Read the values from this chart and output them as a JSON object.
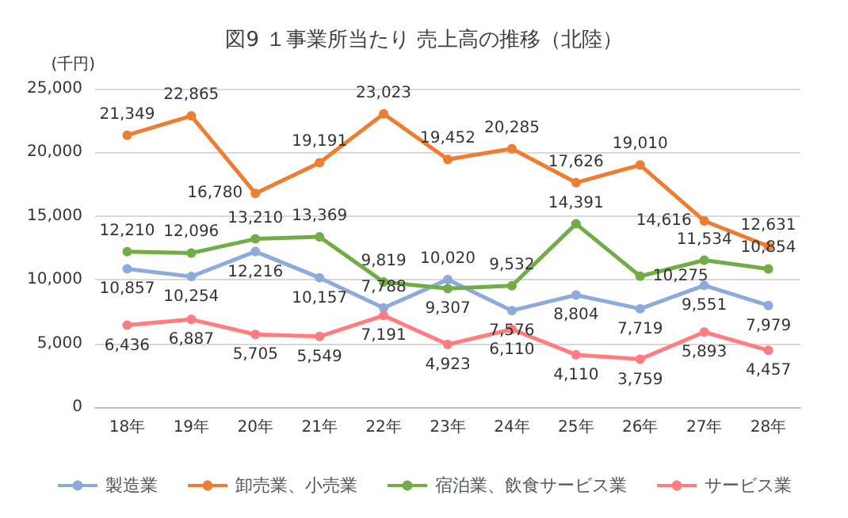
{
  "chart_data": {
    "type": "line",
    "title": "図9 １事業所当たり 売上高の推移（北陸）",
    "ylabel": "(千円)",
    "categories": [
      "18年",
      "19年",
      "20年",
      "21年",
      "22年",
      "23年",
      "24年",
      "25年",
      "26年",
      "27年",
      "28年"
    ],
    "series": [
      {
        "name": "製造業",
        "color": "#8eaadb",
        "values": [
          10857,
          10254,
          12216,
          10157,
          7788,
          10020,
          7576,
          8804,
          7719,
          9551,
          7979
        ],
        "value_labels": [
          "10,857",
          "10,254",
          "12,216",
          "10,157",
          "7,788",
          "10,020",
          "7,576",
          "8,804",
          "7,719",
          "9,551",
          "7,979"
        ]
      },
      {
        "name": "卸売業、小売業",
        "color": "#ed7d31",
        "values": [
          21349,
          22865,
          16780,
          19191,
          23023,
          19452,
          20285,
          17626,
          19010,
          14616,
          12631
        ],
        "value_labels": [
          "21,349",
          "22,865",
          "16,780",
          "19,191",
          "23,023",
          "19,452",
          "20,285",
          "17,626",
          "19,010",
          "14,616",
          "12,631"
        ]
      },
      {
        "name": "宿泊業、飲食サービス業",
        "color": "#70ad47",
        "values": [
          12210,
          12096,
          13210,
          13369,
          9819,
          9307,
          9532,
          14391,
          10275,
          11534,
          10854
        ],
        "value_labels": [
          "12,210",
          "12,096",
          "13,210",
          "13,369",
          "9,819",
          "9,307",
          "9,532",
          "14,391",
          "10,275",
          "11,534",
          "10,854"
        ]
      },
      {
        "name": "サービス業",
        "color": "#ff7c80",
        "values": [
          6436,
          6887,
          5705,
          5549,
          7191,
          4923,
          6110,
          4110,
          3759,
          5893,
          4457
        ],
        "value_labels": [
          "6,436",
          "6,887",
          "5,705",
          "5,549",
          "7,191",
          "4,923",
          "6,110",
          "4,110",
          "3,759",
          "5,893",
          "4,457"
        ]
      }
    ],
    "ylim": [
      0,
      25000
    ],
    "yticks": [
      {
        "value": 0,
        "label": "0"
      },
      {
        "value": 5000,
        "label": "5,000"
      },
      {
        "value": 10000,
        "label": "10,000"
      },
      {
        "value": 15000,
        "label": "15,000"
      },
      {
        "value": 20000,
        "label": "20,000"
      },
      {
        "value": 25000,
        "label": "25,000"
      }
    ],
    "grid": "y",
    "legend": "bottom",
    "marker": "circle",
    "line_style": "solid"
  }
}
